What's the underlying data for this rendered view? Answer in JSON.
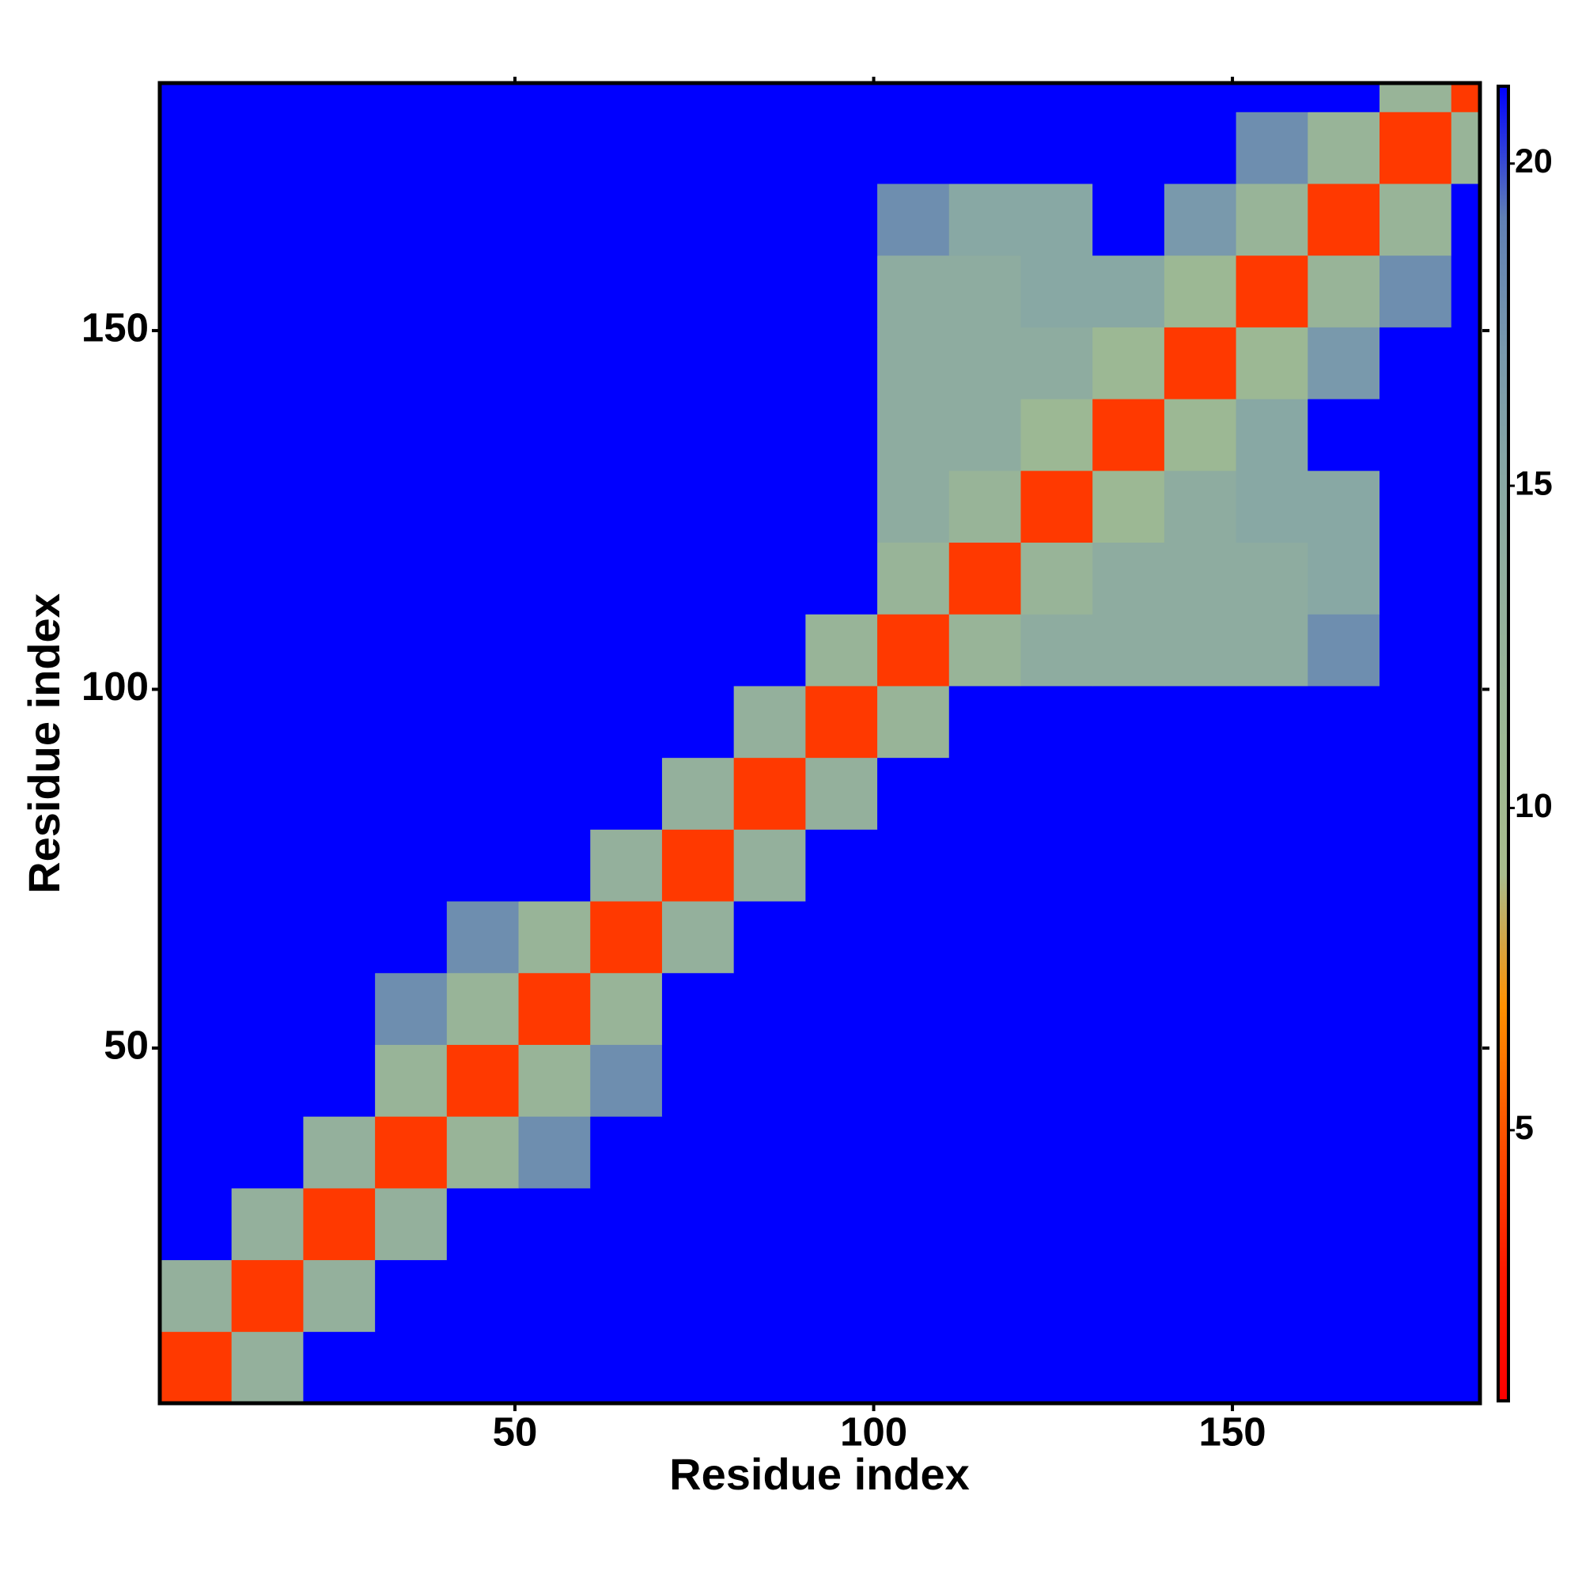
{
  "chart_data": {
    "type": "heatmap",
    "xlabel": "Residue index",
    "ylabel": "Residue index",
    "xlim": [
      0.5,
      184.5
    ],
    "ylim": [
      0.5,
      184.5
    ],
    "xticks": [
      50,
      100,
      150
    ],
    "yticks": [
      50,
      100,
      150
    ],
    "bins": [
      0.5,
      10.5,
      20.5,
      30.5,
      40.5,
      50.5,
      60.5,
      70.5,
      80.5,
      90.5,
      100.5,
      110.5,
      120.5,
      130.5,
      140.5,
      150.5,
      160.5,
      170.5,
      180.5,
      184.5
    ],
    "values": [
      [
        4,
        13,
        22,
        22,
        22,
        22,
        22,
        22,
        22,
        22,
        22,
        22,
        22,
        22,
        22,
        22,
        22,
        22,
        22
      ],
      [
        13,
        4,
        13,
        22,
        22,
        22,
        22,
        22,
        22,
        22,
        22,
        22,
        22,
        22,
        22,
        22,
        22,
        22,
        22
      ],
      [
        22,
        13,
        4,
        13,
        22,
        22,
        22,
        22,
        22,
        22,
        22,
        22,
        22,
        22,
        22,
        22,
        22,
        22,
        22
      ],
      [
        22,
        22,
        13,
        4,
        12,
        18,
        22,
        22,
        22,
        22,
        22,
        22,
        22,
        22,
        22,
        22,
        22,
        22,
        22
      ],
      [
        22,
        22,
        22,
        12,
        4,
        12,
        18,
        22,
        22,
        22,
        22,
        22,
        22,
        22,
        22,
        22,
        22,
        22,
        22
      ],
      [
        22,
        22,
        22,
        18,
        12,
        4,
        12,
        22,
        22,
        22,
        22,
        22,
        22,
        22,
        22,
        22,
        22,
        22,
        22
      ],
      [
        22,
        22,
        22,
        22,
        18,
        12,
        4,
        13,
        22,
        22,
        22,
        22,
        22,
        22,
        22,
        22,
        22,
        22,
        22
      ],
      [
        22,
        22,
        22,
        22,
        22,
        22,
        13,
        4,
        13,
        22,
        22,
        22,
        22,
        22,
        22,
        22,
        22,
        22,
        22
      ],
      [
        22,
        22,
        22,
        22,
        22,
        22,
        22,
        13,
        4,
        13,
        22,
        22,
        22,
        22,
        22,
        22,
        22,
        22,
        22
      ],
      [
        22,
        22,
        22,
        22,
        22,
        22,
        22,
        22,
        13,
        4,
        12,
        22,
        22,
        22,
        22,
        22,
        22,
        22,
        22
      ],
      [
        22,
        22,
        22,
        22,
        22,
        22,
        22,
        22,
        22,
        12,
        4,
        12,
        14,
        14,
        14,
        14,
        18,
        22,
        22
      ],
      [
        22,
        22,
        22,
        22,
        22,
        22,
        22,
        22,
        22,
        22,
        12,
        4,
        12,
        14,
        14,
        14,
        15,
        22,
        22
      ],
      [
        22,
        22,
        22,
        22,
        22,
        22,
        22,
        22,
        22,
        22,
        14,
        12,
        4,
        11,
        14,
        15,
        15,
        22,
        22
      ],
      [
        22,
        22,
        22,
        22,
        22,
        22,
        22,
        22,
        22,
        22,
        14,
        14,
        11,
        4,
        11,
        15,
        22,
        22,
        22
      ],
      [
        22,
        22,
        22,
        22,
        22,
        22,
        22,
        22,
        22,
        22,
        14,
        14,
        14,
        11,
        4,
        11,
        17,
        22,
        22
      ],
      [
        22,
        22,
        22,
        22,
        22,
        22,
        22,
        22,
        22,
        22,
        14,
        14,
        15,
        15,
        11,
        4,
        12,
        18,
        22
      ],
      [
        22,
        22,
        22,
        22,
        22,
        22,
        22,
        22,
        22,
        22,
        18,
        15,
        15,
        22,
        17,
        12,
        4,
        12,
        22
      ],
      [
        22,
        22,
        22,
        22,
        22,
        22,
        22,
        22,
        22,
        22,
        22,
        22,
        22,
        22,
        22,
        18,
        12,
        4,
        12
      ],
      [
        22,
        22,
        22,
        22,
        22,
        22,
        22,
        22,
        22,
        22,
        22,
        22,
        22,
        22,
        22,
        22,
        22,
        12,
        4
      ]
    ],
    "colorbar": {
      "lim": [
        0.8,
        21.2
      ],
      "ticks": [
        5,
        10,
        15,
        20
      ]
    },
    "colormap": [
      "#ff0000",
      "#ff1a00",
      "#ff5000",
      "#ff9000",
      "#a8bc8c",
      "#9cb894",
      "#94b09c",
      "#88a8a4",
      "#7898ac",
      "#6080b4",
      "#0000ff"
    ]
  }
}
